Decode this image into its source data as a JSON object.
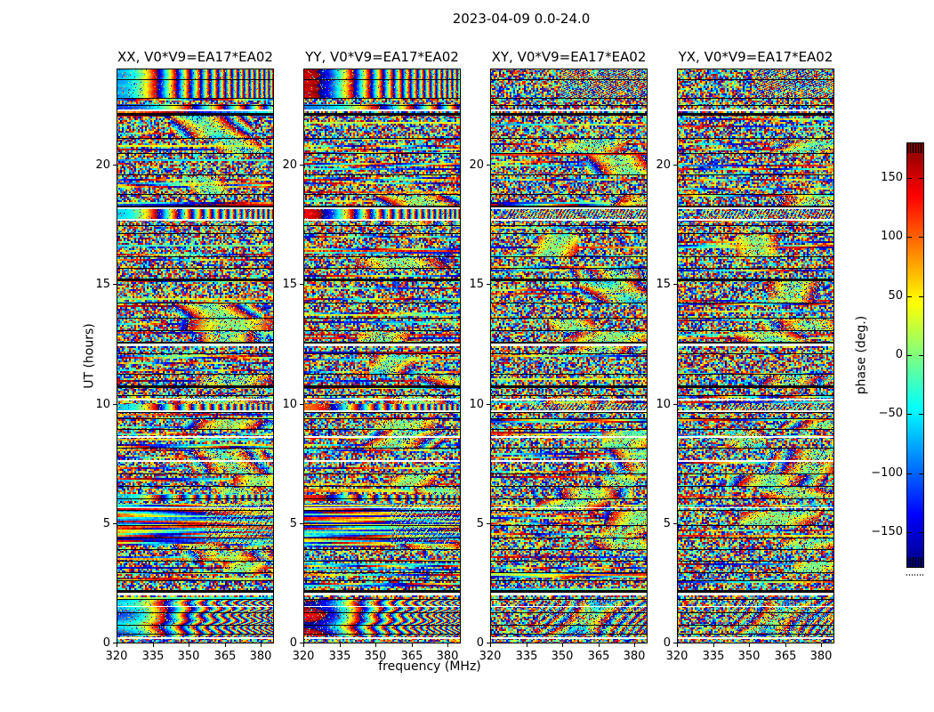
{
  "chart_data": {
    "type": "heatmap",
    "title": "2023-04-09 0.0-24.0",
    "xlabel": "frequency (MHz)",
    "ylabel": "UT (hours)",
    "x_ticks": [
      320,
      335,
      350,
      365,
      380
    ],
    "y_ticks": [
      0,
      5,
      10,
      15,
      20
    ],
    "x_range_mhz": [
      320,
      385.5
    ],
    "y_range_hours": [
      0,
      24
    ],
    "colormap": "jet",
    "panels": [
      {
        "pol": "XX",
        "title": "XX, V0*V9=EA17*EA02",
        "bands": [
          {
            "ut0": 22.78,
            "ut1": 23.96,
            "mode": "smooth",
            "phi0": -75,
            "K": 16,
            "jr": 7
          },
          {
            "ut0": 22.3,
            "ut1": 22.52,
            "mode": "smooth",
            "phi0": -115,
            "K": 4.5,
            "jr": 2
          },
          {
            "ut0": 17.77,
            "ut1": 18.15,
            "mode": "smooth",
            "phi0": -60,
            "K": 15,
            "jr": 4
          },
          {
            "ut0": 9.77,
            "ut1": 9.99,
            "mode": "smooth",
            "phi0": -65,
            "K": 15,
            "jr": 2
          },
          {
            "ut0": 5.97,
            "ut1": 6.2,
            "mode": "smooth",
            "phi0": -70,
            "K": 13,
            "jr": 2
          },
          {
            "ut0": 4.2,
            "ut1": 5.83,
            "mode": "streaks"
          },
          {
            "ut0": 0.32,
            "ut1": 1.84,
            "mode": "smooth_arc",
            "phi0": -80,
            "K": 11,
            "jr": 10
          }
        ]
      },
      {
        "pol": "YY",
        "title": "YY, V0*V9=EA17*EA02",
        "bands": [
          {
            "ut0": 22.78,
            "ut1": 23.96,
            "mode": "smooth",
            "phi0": 155,
            "K": 15,
            "jr": 7
          },
          {
            "ut0": 22.3,
            "ut1": 22.52,
            "mode": "smooth",
            "phi0": -90,
            "K": 4,
            "jr": 2
          },
          {
            "ut0": 17.77,
            "ut1": 18.15,
            "mode": "smooth",
            "phi0": 140,
            "K": 15.5,
            "jr": 4
          },
          {
            "ut0": 9.77,
            "ut1": 9.99,
            "mode": "smooth",
            "phi0": 95,
            "K": 14,
            "jr": 2
          },
          {
            "ut0": 5.97,
            "ut1": 6.2,
            "mode": "smooth",
            "phi0": 120,
            "K": 13.5,
            "jr": 2
          },
          {
            "ut0": 4.2,
            "ut1": 5.83,
            "mode": "streaks"
          },
          {
            "ut0": 0.32,
            "ut1": 1.84,
            "mode": "smooth_arc",
            "phi0": 160,
            "K": 11.5,
            "jr": 10
          }
        ]
      },
      {
        "pol": "XY",
        "title": "XY, V0*V9=EA17*EA02",
        "bands": [
          {
            "ut0": 22.78,
            "ut1": 23.96,
            "mode": "checker",
            "xf": 0.45,
            "fx": 63,
            "fy": 147,
            "mix": 0.5
          },
          {
            "ut0": 17.77,
            "ut1": 18.15,
            "mode": "checker",
            "xf": 0.1,
            "fx": 96,
            "fy": 53,
            "mix": 0.55
          },
          {
            "ut0": 9.77,
            "ut1": 9.99,
            "mode": "checker",
            "xf": 0.25,
            "fx": 85,
            "fy": 60,
            "mix": 0.5
          },
          {
            "ut0": 0.32,
            "ut1": 1.84,
            "mode": "arcs",
            "xf": 0.3,
            "mix": 0.55
          }
        ]
      },
      {
        "pol": "YX",
        "title": "YX, V0*V9=EA17*EA02",
        "bands": [
          {
            "ut0": 22.78,
            "ut1": 23.96,
            "mode": "checker",
            "xf": 0.5,
            "fx": 58,
            "fy": 139,
            "mix": 0.45
          },
          {
            "ut0": 17.77,
            "ut1": 18.15,
            "mode": "checker",
            "xf": 0.15,
            "fx": 90,
            "fy": 47,
            "mix": 0.5
          },
          {
            "ut0": 9.77,
            "ut1": 9.99,
            "mode": "checker",
            "xf": 0.3,
            "fx": 80,
            "fy": 66,
            "mix": 0.45
          },
          {
            "ut0": 0.32,
            "ut1": 1.84,
            "mode": "arcs",
            "xf": 0.35,
            "mix": 0.5
          }
        ]
      }
    ],
    "colorbar": {
      "label": "phase (deg.)",
      "colormap": "jet",
      "range_deg": [
        -180,
        180
      ],
      "ticks": [
        150,
        100,
        50,
        0,
        -50,
        -100,
        -150
      ],
      "tick_labels": [
        "150",
        "100",
        "50",
        "0",
        "−50",
        "−100",
        "−150"
      ],
      "extend_hatched_caps": true
    },
    "features": {
      "scan_boundaries_ut": [
        {
          "ut": 23.55
        },
        {
          "ut": 22.77
        },
        {
          "ut": 22.48
        },
        {
          "ut": 22.14,
          "w": 3
        },
        {
          "ut": 21.1
        },
        {
          "ut": 20.47
        },
        {
          "ut": 19.58
        },
        {
          "ut": 18.76
        },
        {
          "ut": 18.28,
          "w": 3
        },
        {
          "ut": 17.46
        },
        {
          "ut": 17.13
        },
        {
          "ut": 16.16
        },
        {
          "ut": 15.68
        },
        {
          "ut": 15.23,
          "w": 3
        },
        {
          "ut": 14.23
        },
        {
          "ut": 13.6
        },
        {
          "ut": 13.08
        },
        {
          "ut": 12.6,
          "w": 3
        },
        {
          "ut": 12.11
        },
        {
          "ut": 11.26
        },
        {
          "ut": 10.77,
          "w": 3
        },
        {
          "ut": 10.36
        },
        {
          "ut": 9.66
        },
        {
          "ut": 9.4
        },
        {
          "ut": 8.94
        },
        {
          "ut": 8.17
        },
        {
          "ut": 7.09
        },
        {
          "ut": 6.58
        },
        {
          "ut": 6.06
        },
        {
          "ut": 5.57
        },
        {
          "ut": 4.94
        },
        {
          "ut": 4.42
        },
        {
          "ut": 3.94
        },
        {
          "ut": 3.46
        },
        {
          "ut": 2.97
        },
        {
          "ut": 2.64
        },
        {
          "ut": 2.23,
          "w": 3
        },
        {
          "ut": 1.86
        },
        {
          "ut": 1.3
        },
        {
          "ut": 0.78
        },
        {
          "ut": 0.41
        },
        {
          "ut": 0.22
        }
      ],
      "data_gaps_ut": [
        {
          "ut": 22.29,
          "h": 2
        },
        {
          "ut": 18.2,
          "h": 2
        },
        {
          "ut": 17.72,
          "h": 2
        },
        {
          "ut": 12.52,
          "h": 3
        },
        {
          "ut": 10.22,
          "h": 2
        },
        {
          "ut": 9.74,
          "h": 2
        },
        {
          "ut": 8.65,
          "h": 2
        },
        {
          "ut": 7.65,
          "h": 2
        },
        {
          "ut": 5.7,
          "h": 1
        },
        {
          "ut": 2.12,
          "h": 3
        },
        {
          "ut": 1.56,
          "h": 1
        },
        {
          "ut": 0.26,
          "h": 2
        }
      ]
    },
    "render_seeds": [
      3,
      7,
      13,
      21
    ],
    "colors": {
      "axis": "#000000",
      "background": "#ffffff"
    }
  }
}
